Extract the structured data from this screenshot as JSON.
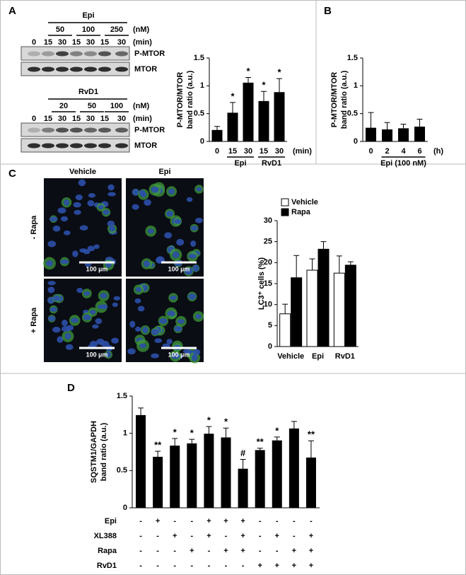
{
  "panel_labels": [
    "A",
    "B",
    "C",
    "D"
  ],
  "blots": [
    {
      "treatment": "Epi",
      "doses": [
        "50",
        "100",
        "250"
      ],
      "dose_unit": "(nM)",
      "times": [
        "0",
        "15",
        "30",
        "15",
        "30",
        "15",
        "30"
      ],
      "time_unit": "(min)",
      "bands": [
        "P-MTOR",
        "MTOR"
      ]
    },
    {
      "treatment": "RvD1",
      "doses": [
        "20",
        "50",
        "100"
      ],
      "dose_unit": "(nM)",
      "times": [
        "0",
        "15",
        "30",
        "15",
        "30",
        "15",
        "30"
      ],
      "time_unit": "(min)",
      "bands": [
        "P-MTOR",
        "MTOR"
      ]
    }
  ],
  "micrographs": {
    "columns": [
      "Vehicle",
      "Epi"
    ],
    "rows": [
      "- Rapa",
      "+ Rapa"
    ],
    "scale_bar": "100 µm"
  },
  "chart_data": [
    {
      "type": "bar",
      "categories": [
        "0",
        "15",
        "30",
        "15",
        "30"
      ],
      "values": [
        0.2,
        0.51,
        1.05,
        0.72,
        0.88
      ],
      "errors": [
        0.07,
        0.19,
        0.1,
        0.18,
        0.25
      ],
      "annotations": [
        null,
        "*",
        "*",
        "*",
        "*"
      ],
      "ylabel": [
        "P-MTOR/MTOR",
        "band ratio (a.u.)"
      ],
      "x_unit": "(min)",
      "groups": [
        "Epi",
        "RvD1"
      ],
      "ylim": [
        0,
        1.5
      ],
      "yticks": [
        0,
        0.5,
        1,
        1.5
      ],
      "color": "#000000"
    },
    {
      "type": "bar",
      "categories": [
        "0",
        "2",
        "4",
        "6"
      ],
      "values": [
        0.24,
        0.21,
        0.23,
        0.26
      ],
      "errors": [
        0.28,
        0.13,
        0.08,
        0.14
      ],
      "ylabel": [
        "P-MTOR/MTOR",
        "band ratio (a.u.)"
      ],
      "x_unit": "(h)",
      "groups": [
        "Epi (100 nM)"
      ],
      "ylim": [
        0,
        1.5
      ],
      "yticks": [
        0,
        0.5,
        1,
        1.5
      ],
      "color": "#000000"
    },
    {
      "type": "bar",
      "categories": [
        "Vehicle",
        "Epi",
        "RvD1"
      ],
      "series": [
        {
          "name": "Vehicle",
          "color": "#ffffff",
          "values": [
            7.8,
            18.2,
            17.5
          ],
          "errors": [
            2.3,
            2.7,
            4.1
          ]
        },
        {
          "name": "Rapa",
          "color": "#000000",
          "values": [
            16.4,
            23.2,
            19.4
          ],
          "errors": [
            5.3,
            1.8,
            0.8
          ]
        }
      ],
      "ylabel": [
        "LC3⁺ cells (%)"
      ],
      "ylim": [
        0,
        30
      ],
      "yticks": [
        0,
        5,
        10,
        15,
        20,
        25,
        30
      ],
      "legend": "upper left"
    },
    {
      "type": "bar",
      "values": [
        1.24,
        0.68,
        0.83,
        0.86,
        0.99,
        0.94,
        0.52,
        0.77,
        0.9,
        1.06,
        0.67
      ],
      "errors": [
        0.1,
        0.08,
        0.1,
        0.06,
        0.1,
        0.13,
        0.13,
        0.03,
        0.05,
        0.1,
        0.23
      ],
      "annotations": [
        null,
        "**",
        "*",
        "*",
        "*",
        "*",
        "#",
        "**",
        "*",
        null,
        "**"
      ],
      "ylabel": [
        "SQSTM1/GAPDH",
        "band ratio (a.u.)"
      ],
      "ylim": [
        0,
        1.5
      ],
      "yticks": [
        0,
        0.5,
        1,
        1.5
      ],
      "color": "#000000",
      "conditions": [
        {
          "name": "Epi",
          "values": [
            "-",
            "+",
            "-",
            "-",
            "+",
            "+",
            "+",
            "-",
            "-",
            "-",
            "-"
          ]
        },
        {
          "name": "XL388",
          "values": [
            "-",
            "-",
            "+",
            "-",
            "+",
            "-",
            "+",
            "-",
            "+",
            "-",
            "+"
          ]
        },
        {
          "name": "Rapa",
          "values": [
            "-",
            "-",
            "-",
            "+",
            "-",
            "+",
            "+",
            "-",
            "-",
            "+",
            "+"
          ]
        },
        {
          "name": "RvD1",
          "values": [
            "-",
            "-",
            "-",
            "-",
            "-",
            "-",
            "-",
            "+",
            "+",
            "+",
            "+"
          ]
        }
      ]
    }
  ]
}
